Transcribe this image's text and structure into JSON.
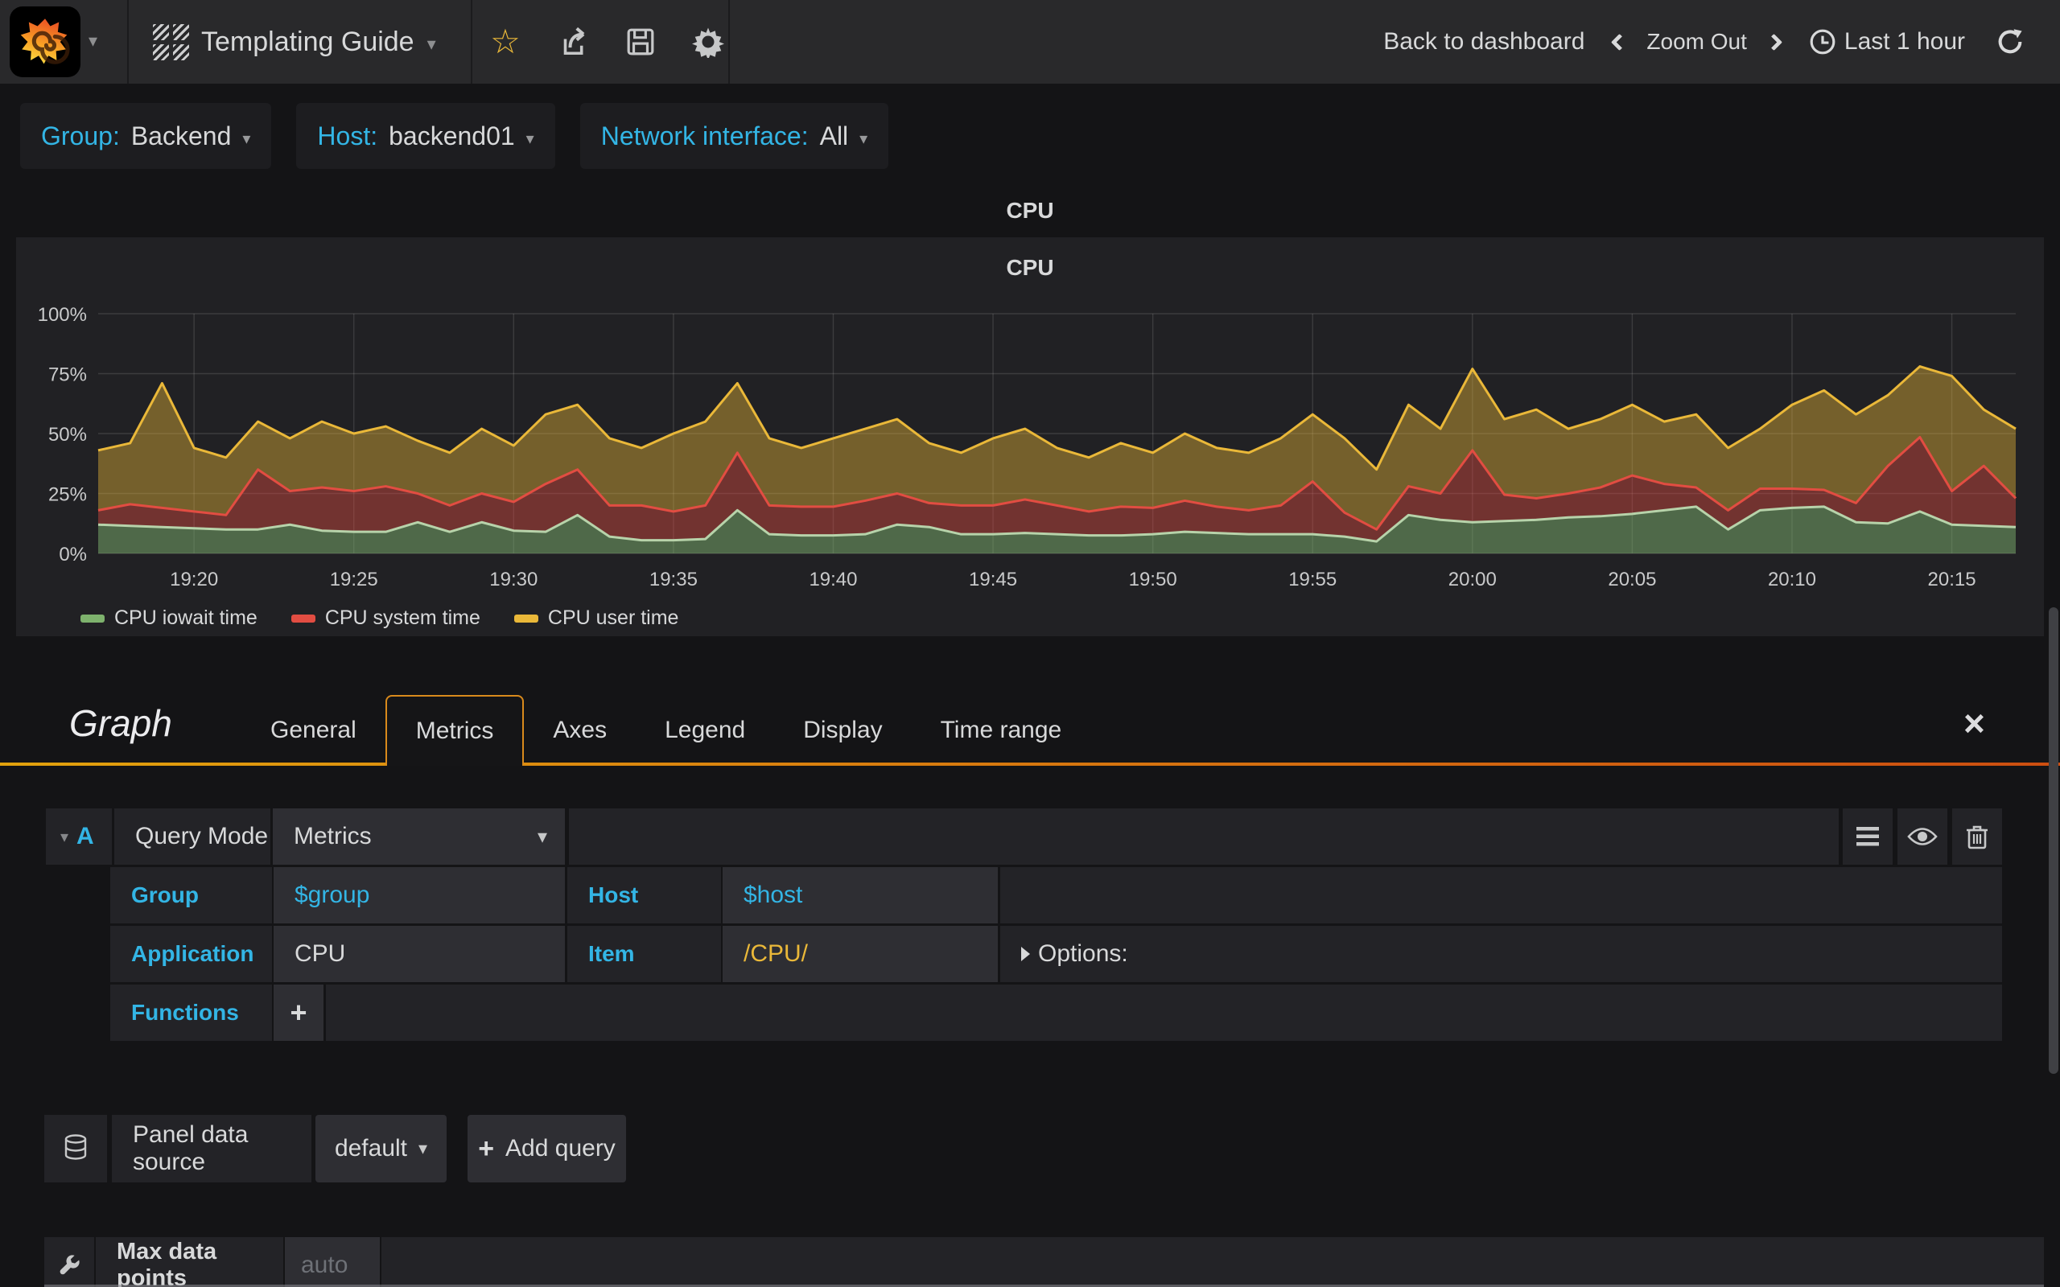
{
  "navbar": {
    "title": "Templating Guide",
    "back_label": "Back to dashboard",
    "zoom_out_label": "Zoom Out",
    "time_range_label": "Last 1 hour"
  },
  "variables": [
    {
      "label": "Group:",
      "value": "Backend"
    },
    {
      "label": "Host:",
      "value": "backend01"
    },
    {
      "label": "Network interface:",
      "value": "All"
    }
  ],
  "row_title": "CPU",
  "panel": {
    "title": "CPU"
  },
  "chart_data": {
    "type": "area",
    "stacked": true,
    "title": "CPU",
    "unit": "percent",
    "ylim": [
      0,
      100
    ],
    "grid": true,
    "legend_position": "bottom",
    "x_start": "19:17",
    "x_end": "20:17",
    "x_interval_minutes": 1,
    "x_ticks": [
      "19:20",
      "19:25",
      "19:30",
      "19:35",
      "19:40",
      "19:45",
      "19:50",
      "19:55",
      "20:00",
      "20:05",
      "20:10",
      "20:15"
    ],
    "x_tick_minutes": [
      3,
      8,
      13,
      18,
      23,
      28,
      33,
      38,
      43,
      48,
      53,
      58
    ],
    "y_ticks": [
      "0%",
      "25%",
      "50%",
      "75%",
      "100%"
    ],
    "series": [
      {
        "name": "CPU iowait time",
        "color": "#7EB26D",
        "line_color": "#B7D3AA",
        "fill_opacity": 0.5,
        "values": [
          12,
          11.5,
          11,
          10.5,
          10,
          10,
          12,
          9.5,
          9,
          9,
          13,
          9,
          13,
          9.5,
          9,
          16,
          7,
          5.5,
          5.5,
          6,
          18,
          8,
          7.5,
          7.5,
          8,
          12,
          11,
          8,
          8,
          8.5,
          8,
          7.5,
          7.5,
          8,
          9,
          8.5,
          8,
          8,
          8,
          7,
          5,
          16,
          14,
          13,
          13.5,
          14,
          15,
          15.5,
          16.5,
          18,
          19.5,
          10,
          18,
          19,
          19.5,
          13,
          12.5,
          17.5,
          12,
          11.5,
          11
        ]
      },
      {
        "name": "CPU system time",
        "color": "#E24D42",
        "line_color": "#E24D42",
        "fill_opacity": 0.42,
        "values": [
          6,
          9,
          8,
          7,
          6,
          25,
          14,
          18,
          17,
          19,
          12,
          11,
          12,
          12,
          20,
          19,
          13,
          14.5,
          12,
          14,
          24,
          12,
          12,
          12,
          14,
          13,
          10,
          12,
          12,
          14,
          12,
          10,
          12,
          11,
          13,
          11,
          10,
          12,
          22,
          10,
          5,
          12,
          11,
          30,
          11,
          9,
          10,
          12,
          16,
          11,
          8,
          8,
          9,
          8,
          7,
          8,
          24,
          31,
          14,
          25,
          12
        ]
      },
      {
        "name": "CPU user time",
        "color": "#EAB839",
        "line_color": "#EAB839",
        "fill_opacity": 0.42,
        "values": [
          25,
          25.5,
          52,
          26.5,
          24,
          20,
          22,
          27.5,
          24,
          25,
          22,
          22,
          27,
          23.5,
          29,
          27,
          28,
          24,
          32.5,
          35,
          29,
          28,
          24.5,
          28.5,
          30,
          31,
          25,
          22,
          28,
          29.5,
          24,
          22.5,
          26.5,
          23,
          28,
          24.5,
          24,
          28,
          28,
          31,
          25,
          34,
          27,
          34,
          31.5,
          37,
          27,
          28.5,
          29.5,
          26,
          30.5,
          26,
          25,
          35,
          41.5,
          37,
          29.5,
          29.5,
          48,
          23.5,
          29
        ]
      }
    ]
  },
  "editor": {
    "panel_type": "Graph",
    "tabs": [
      "General",
      "Metrics",
      "Axes",
      "Legend",
      "Display",
      "Time range"
    ],
    "active_tab": "Metrics",
    "query": {
      "ref": "A",
      "mode_label": "Query Mode",
      "mode_value": "Metrics",
      "group_label": "Group",
      "group_value": "$group",
      "host_label": "Host",
      "host_value": "$host",
      "app_label": "Application",
      "app_value": "CPU",
      "item_label": "Item",
      "item_value": "/CPU/",
      "options_label": "Options:",
      "functions_label": "Functions",
      "add_function_label": "+"
    },
    "datasource": {
      "label": "Panel data source",
      "value": "default",
      "add_query_label": "Add query"
    },
    "max_data_points": {
      "label": "Max data points",
      "placeholder": "auto"
    }
  },
  "colors": {
    "accent_blue": "#33B5E5",
    "regex_gold": "#EAB839",
    "tab_border_left": "#E2A20D",
    "tab_border_right": "#CC4E10",
    "star_gold": "#EAB839"
  }
}
